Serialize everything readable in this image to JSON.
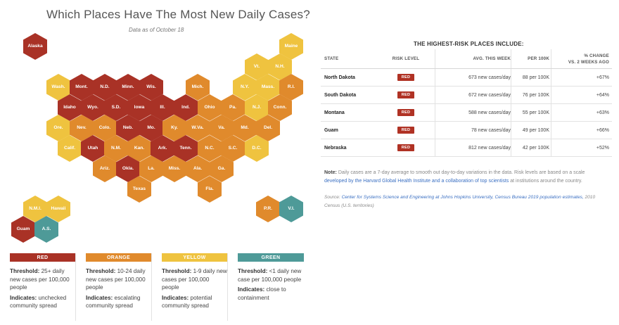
{
  "header": {
    "title": "Which Places Have The Most New Daily Cases?",
    "as_of": "Data as of October 18"
  },
  "colors": {
    "red": "#a93226",
    "orange": "#e08a2c",
    "yellow": "#efc33f",
    "green": "#4e9a98"
  },
  "map": {
    "hexes": [
      {
        "label": "Alaska",
        "risk": "red"
      },
      {
        "label": "Maine",
        "risk": "yellow"
      },
      {
        "label": "Vt.",
        "risk": "yellow"
      },
      {
        "label": "N.H.",
        "risk": "yellow"
      },
      {
        "label": "Wash.",
        "risk": "yellow"
      },
      {
        "label": "Mont.",
        "risk": "red"
      },
      {
        "label": "N.D.",
        "risk": "red"
      },
      {
        "label": "Minn.",
        "risk": "red"
      },
      {
        "label": "Wis.",
        "risk": "red"
      },
      {
        "label": "Mich.",
        "risk": "orange"
      },
      {
        "label": "N.Y.",
        "risk": "yellow"
      },
      {
        "label": "Mass.",
        "risk": "yellow"
      },
      {
        "label": "R.I.",
        "risk": "orange"
      },
      {
        "label": "Idaho",
        "risk": "red"
      },
      {
        "label": "Wyo.",
        "risk": "red"
      },
      {
        "label": "S.D.",
        "risk": "red"
      },
      {
        "label": "Iowa",
        "risk": "red"
      },
      {
        "label": "Ill.",
        "risk": "red"
      },
      {
        "label": "Ind.",
        "risk": "red"
      },
      {
        "label": "Ohio",
        "risk": "orange"
      },
      {
        "label": "Pa.",
        "risk": "orange"
      },
      {
        "label": "N.J.",
        "risk": "yellow"
      },
      {
        "label": "Conn.",
        "risk": "orange"
      },
      {
        "label": "Ore.",
        "risk": "yellow"
      },
      {
        "label": "Nev.",
        "risk": "orange"
      },
      {
        "label": "Colo.",
        "risk": "orange"
      },
      {
        "label": "Neb.",
        "risk": "red"
      },
      {
        "label": "Mo.",
        "risk": "red"
      },
      {
        "label": "Ky.",
        "risk": "orange"
      },
      {
        "label": "W.Va.",
        "risk": "orange"
      },
      {
        "label": "Va.",
        "risk": "orange"
      },
      {
        "label": "Md.",
        "risk": "orange"
      },
      {
        "label": "Del.",
        "risk": "orange"
      },
      {
        "label": "Calif.",
        "risk": "yellow"
      },
      {
        "label": "Utah",
        "risk": "red"
      },
      {
        "label": "N.M.",
        "risk": "orange"
      },
      {
        "label": "Kan.",
        "risk": "orange"
      },
      {
        "label": "Ark.",
        "risk": "red"
      },
      {
        "label": "Tenn.",
        "risk": "red"
      },
      {
        "label": "N.C.",
        "risk": "orange"
      },
      {
        "label": "S.C.",
        "risk": "orange"
      },
      {
        "label": "D.C.",
        "risk": "yellow"
      },
      {
        "label": "Ariz.",
        "risk": "orange"
      },
      {
        "label": "Okla.",
        "risk": "red"
      },
      {
        "label": "La.",
        "risk": "orange"
      },
      {
        "label": "Miss.",
        "risk": "orange"
      },
      {
        "label": "Ala.",
        "risk": "orange"
      },
      {
        "label": "Ga.",
        "risk": "orange"
      },
      {
        "label": "Texas",
        "risk": "orange"
      },
      {
        "label": "Fla.",
        "risk": "orange"
      },
      {
        "label": "N.M.I.",
        "risk": "yellow"
      },
      {
        "label": "Hawaii",
        "risk": "yellow"
      },
      {
        "label": "Guam",
        "risk": "red"
      },
      {
        "label": "A.S.",
        "risk": "green"
      },
      {
        "label": "P.R.",
        "risk": "orange"
      },
      {
        "label": "V.I.",
        "risk": "green"
      }
    ]
  },
  "legend": [
    {
      "label": "RED",
      "color": "red",
      "threshold_label": "Threshold:",
      "threshold": "25+ daily new cases per 100,000 people",
      "indicates_label": "Indicates:",
      "indicates": "unchecked community spread"
    },
    {
      "label": "ORANGE",
      "color": "orange",
      "threshold_label": "Threshold:",
      "threshold": "10-24 daily new cases per 100,000 people",
      "indicates_label": "Indicates:",
      "indicates": "escalating community spread"
    },
    {
      "label": "YELLOW",
      "color": "yellow",
      "threshold_label": "Threshold:",
      "threshold": "1-9 daily new cases per 100,000 people",
      "indicates_label": "Indicates:",
      "indicates": "potential community spread"
    },
    {
      "label": "GREEN",
      "color": "green",
      "threshold_label": "Threshold:",
      "threshold": "<1 daily new case per 100,000 people",
      "indicates_label": "Indicates:",
      "indicates": "close to containment"
    }
  ],
  "table": {
    "title": "THE HIGHEST-RISK PLACES INCLUDE:",
    "columns": {
      "state": "STATE",
      "risk": "RISK LEVEL",
      "avg": "AVG. THIS WEEK",
      "per": "PER 100K",
      "change_line1": "% CHANGE",
      "change_line2": "VS. 2 WEEKS AGO"
    },
    "rows": [
      {
        "state": "North Dakota",
        "risk": "RED",
        "avg": "673 new cases/day",
        "per": "88 per 100K",
        "change": "+67%"
      },
      {
        "state": "South Dakota",
        "risk": "RED",
        "avg": "672 new cases/day",
        "per": "76 per 100K",
        "change": "+64%"
      },
      {
        "state": "Montana",
        "risk": "RED",
        "avg": "588 new cases/day",
        "per": "55 per 100K",
        "change": "+63%"
      },
      {
        "state": "Guam",
        "risk": "RED",
        "avg": "78 new cases/day",
        "per": "49 per 100K",
        "change": "+66%"
      },
      {
        "state": "Nebraska",
        "risk": "RED",
        "avg": "812 new cases/day",
        "per": "42 per 100K",
        "change": "+52%"
      }
    ]
  },
  "note": {
    "label": "Note:",
    "text": "Daily cases are a 7-day average to smooth out day-to-day variations in the data. Risk levels are based on a scale",
    "link": "developed by the Harvard Global Health Institute and a collaboration of top scientists",
    "tail": "at institutions around the country."
  },
  "source": {
    "label": "Source:",
    "link": "Center for Systems Science and Engineering at Johns Hopkins University, Census Bureau 2019 population estimates,",
    "tail": "2010 Census (U.S. territories)"
  }
}
